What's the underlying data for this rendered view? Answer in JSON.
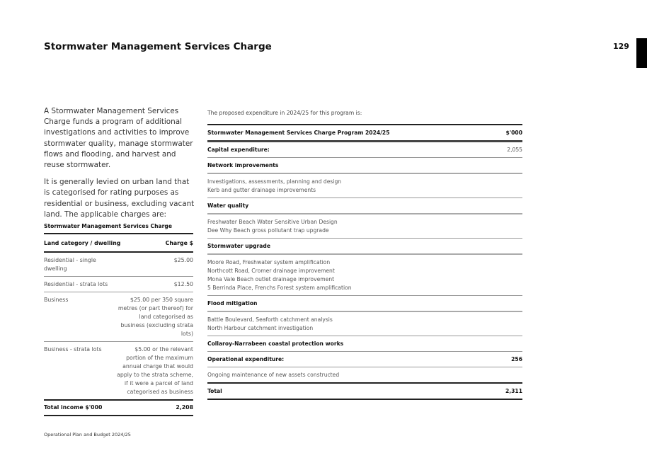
{
  "page": {
    "title": "Stormwater Management Services Charge",
    "page_number": "129",
    "footer": "Operational Plan and Budget 2024/25"
  },
  "intro": [
    "A Stormwater Management Services Charge funds a program of additional investigations and activities to improve stormwater quality, manage stormwater flows and flooding, and harvest and reuse stormwater.",
    "It is generally levied on urban land that is categorised for rating purposes as residential or business, excluding vacant land. The applicable charges are:"
  ],
  "charges": {
    "title": "Stormwater Management Services Charge",
    "headers": [
      "Land category / dwelling",
      "Charge $"
    ],
    "rows": [
      [
        "Residential - single dwelling",
        "$25.00"
      ],
      [
        "Residential - strata lots",
        "$12.50"
      ],
      [
        "Business",
        "$25.00 per 350 square metres (or part thereof) for land categorised as business (excluding strata lots)"
      ],
      [
        "Business - strata lots",
        "$5.00 or the relevant portion of the maximum annual charge that would apply to the strata scheme, if it were a parcel of land categorised as business"
      ]
    ],
    "total": [
      "Total income $'000",
      "2,208"
    ]
  },
  "program": {
    "intro": "The proposed expenditure in 2024/25 for this program is:",
    "headers": [
      "Stormwater Management Services Charge Program 2024/25",
      "$'000"
    ],
    "capital": [
      "Capital expenditure:",
      "2,055"
    ],
    "sections": [
      {
        "name": "Network improvements",
        "items": [
          "Investigations, assessments, planning and design",
          "Kerb and gutter drainage improvements"
        ]
      },
      {
        "name": "Water quality",
        "items": [
          "Freshwater Beach Water Sensitive Urban Design",
          "Dee Why Beach gross pollutant trap upgrade"
        ]
      },
      {
        "name": "Stormwater upgrade",
        "items": [
          "Moore Road, Freshwater system amplification",
          "Northcott Road, Cromer drainage improvement",
          "Mona Vale Beach outlet drainage improvement",
          "5 Berrinda Place, Frenchs Forest system amplification"
        ]
      },
      {
        "name": "Flood mitigation",
        "items": [
          "Battle Boulevard, Seaforth catchment analysis",
          "North Harbour catchment investigation"
        ]
      },
      {
        "name": "Collaroy-Narrabeen coastal protection works",
        "items": []
      }
    ],
    "operational": [
      "Operational expenditure:",
      "256"
    ],
    "operational_items": [
      "Ongoing maintenance of new assets constructed"
    ],
    "total": [
      "Total",
      "2,311"
    ]
  }
}
